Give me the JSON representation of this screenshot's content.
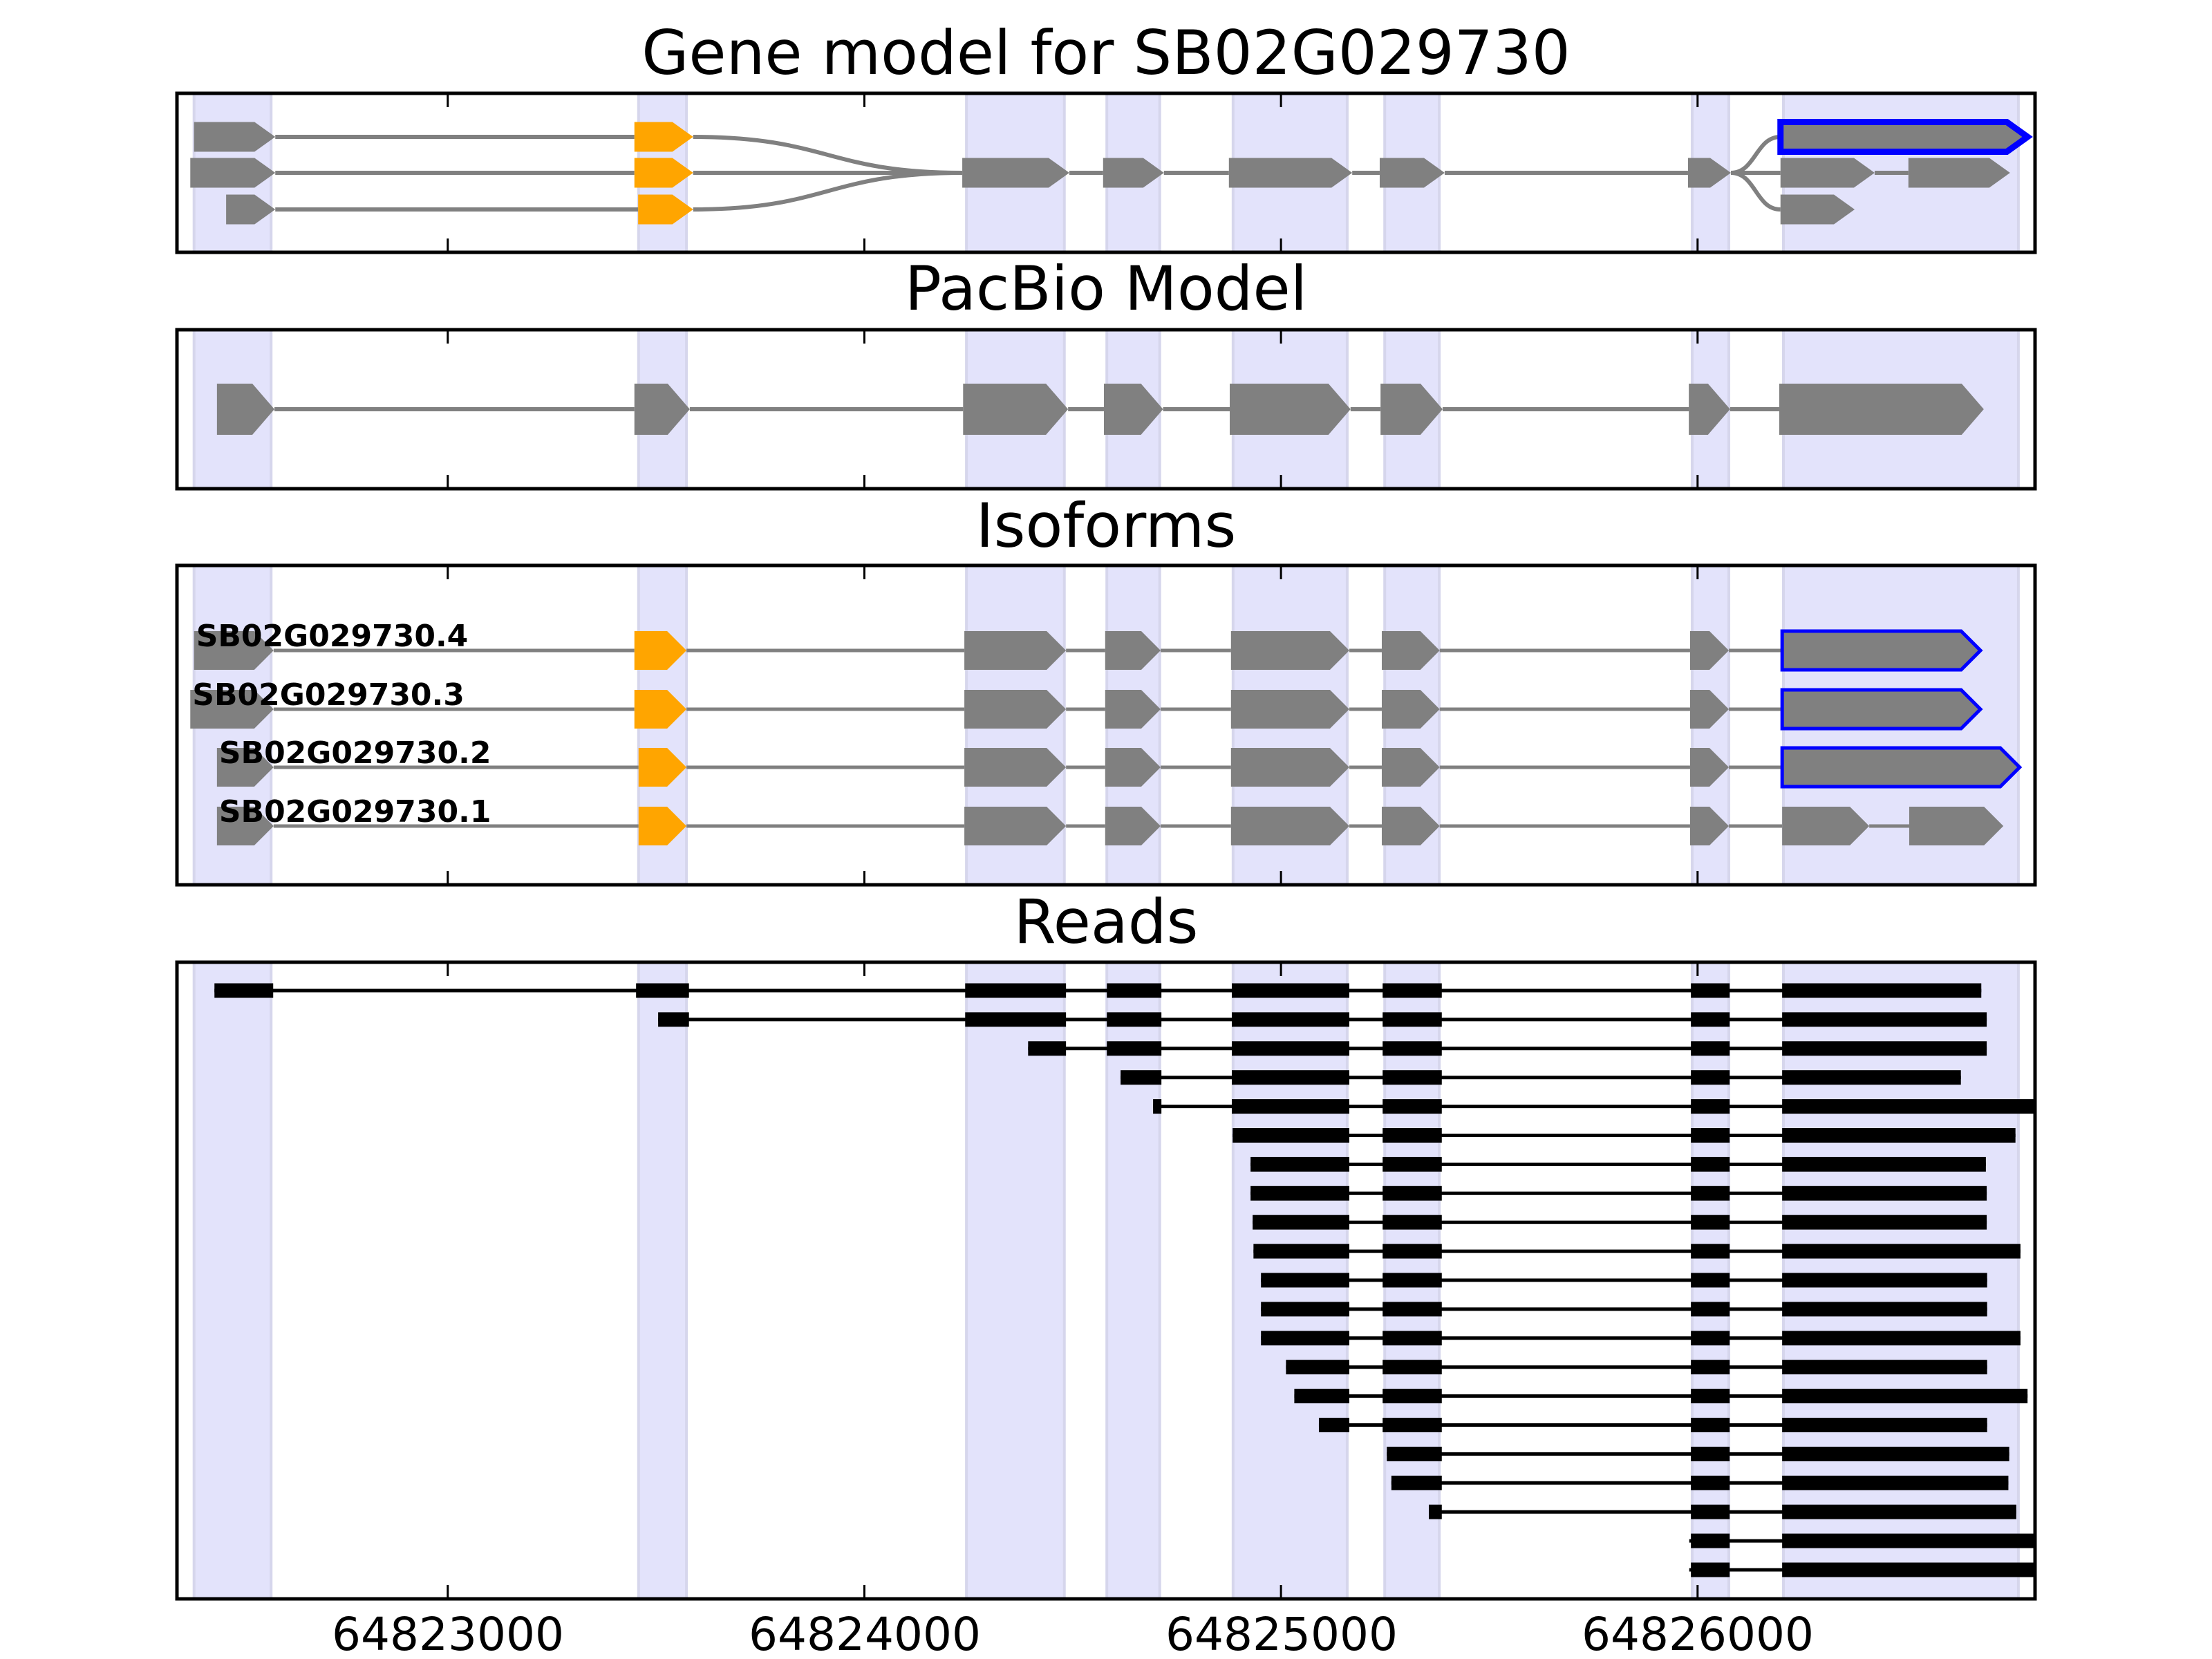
{
  "chart_data": {
    "type": "gene-structure",
    "xlim": [
      64822350,
      64826810
    ],
    "xticks": [
      64823000,
      64824000,
      64825000,
      64826000
    ],
    "xtick_labels": [
      "64823000",
      "64824000",
      "64825000",
      "64826000"
    ],
    "colors": {
      "exon": "#808080",
      "intron": "#808080",
      "utr_highlight": "#FFA500",
      "selected_outline": "#0000FF",
      "band": "#E3E3FB",
      "band_edge": "#D6D6EC",
      "read": "#000000",
      "frame": "#000000"
    },
    "exon_bands": [
      [
        64822391,
        64822576
      ],
      [
        64823458,
        64823573
      ],
      [
        64824245,
        64824480
      ],
      [
        64824582,
        64824709
      ],
      [
        64824885,
        64825159
      ],
      [
        64825249,
        64825380
      ],
      [
        64825987,
        64826075
      ],
      [
        64826206,
        64826770
      ]
    ],
    "panels": {
      "gene_model": {
        "title": "Gene model for SB02G029730",
        "transcripts": [
          {
            "exons": [
              [
                64822391,
                64822586,
                "gray"
              ],
              [
                64823448,
                64823589,
                "orange"
              ],
              [
                64824235,
                64824492,
                "gray"
              ],
              [
                64824573,
                64824719,
                "gray"
              ],
              [
                64824875,
                64825171,
                "gray"
              ],
              [
                64825237,
                64825393,
                "gray"
              ],
              [
                64825977,
                64826080,
                "gray"
              ],
              [
                64826199,
                64826792,
                "blue"
              ]
            ]
          },
          {
            "exons": [
              [
                64822382,
                64822586,
                "gray"
              ],
              [
                64823448,
                64823589,
                "orange"
              ],
              [
                64824235,
                64824492,
                "gray"
              ],
              [
                64824573,
                64824719,
                "gray"
              ],
              [
                64824875,
                64825171,
                "gray"
              ],
              [
                64825237,
                64825393,
                "gray"
              ],
              [
                64825977,
                64826080,
                "gray"
              ],
              [
                64826199,
                64826425,
                "gray"
              ],
              [
                64826506,
                64826750,
                "gray"
              ]
            ]
          },
          {
            "exons": [
              [
                64822468,
                64822586,
                "gray"
              ],
              [
                64823457,
                64823589,
                "orange"
              ],
              [
                64824235,
                64824492,
                "gray"
              ],
              [
                64824573,
                64824719,
                "gray"
              ],
              [
                64824875,
                64825171,
                "gray"
              ],
              [
                64825237,
                64825393,
                "gray"
              ],
              [
                64825977,
                64826080,
                "gray"
              ],
              [
                64826199,
                64826377,
                "gray"
              ]
            ]
          }
        ]
      },
      "pacbio": {
        "title": "PacBio Model",
        "exons": [
          [
            64822446,
            64822584
          ],
          [
            64823448,
            64823581
          ],
          [
            64824237,
            64824489
          ],
          [
            64824575,
            64824717
          ],
          [
            64824877,
            64825167
          ],
          [
            64825239,
            64825388
          ],
          [
            64825979,
            64826078
          ],
          [
            64826196,
            64826687
          ]
        ]
      },
      "isoforms": {
        "title": "Isoforms",
        "items": [
          {
            "label": "SB02G029730.4",
            "exons": [
              [
                64822391,
                64822582,
                "gray"
              ],
              [
                64823448,
                64823573,
                "orange"
              ],
              [
                64824240,
                64824484,
                "gray"
              ],
              [
                64824578,
                64824711,
                "gray"
              ],
              [
                64824880,
                64825164,
                "gray"
              ],
              [
                64825242,
                64825381,
                "gray"
              ],
              [
                64825982,
                64826075,
                "gray"
              ],
              [
                64826203,
                64826679,
                "blue"
              ]
            ]
          },
          {
            "label": "SB02G029730.3",
            "exons": [
              [
                64822382,
                64822582,
                "gray"
              ],
              [
                64823448,
                64823573,
                "orange"
              ],
              [
                64824240,
                64824484,
                "gray"
              ],
              [
                64824578,
                64824711,
                "gray"
              ],
              [
                64824880,
                64825164,
                "gray"
              ],
              [
                64825242,
                64825381,
                "gray"
              ],
              [
                64825982,
                64826075,
                "gray"
              ],
              [
                64826203,
                64826679,
                "blue"
              ]
            ]
          },
          {
            "label": "SB02G029730.2",
            "exons": [
              [
                64822446,
                64822582,
                "gray"
              ],
              [
                64823458,
                64823573,
                "orange"
              ],
              [
                64824240,
                64824484,
                "gray"
              ],
              [
                64824578,
                64824711,
                "gray"
              ],
              [
                64824880,
                64825164,
                "gray"
              ],
              [
                64825242,
                64825381,
                "gray"
              ],
              [
                64825982,
                64826075,
                "gray"
              ],
              [
                64826203,
                64826773,
                "blue"
              ]
            ]
          },
          {
            "label": "SB02G029730.1",
            "exons": [
              [
                64822446,
                64822582,
                "gray"
              ],
              [
                64823458,
                64823573,
                "orange"
              ],
              [
                64824240,
                64824484,
                "gray"
              ],
              [
                64824578,
                64824711,
                "gray"
              ],
              [
                64824880,
                64825164,
                "gray"
              ],
              [
                64825242,
                64825381,
                "gray"
              ],
              [
                64825982,
                64826075,
                "gray"
              ],
              [
                64826203,
                64826412,
                "gray"
              ],
              [
                64826508,
                64826734,
                "gray"
              ]
            ]
          }
        ]
      },
      "reads": {
        "title": "Reads",
        "exon_blocks": [
          [
            64822440,
            64822581
          ],
          [
            64823452,
            64823579
          ],
          [
            64824242,
            64824484
          ],
          [
            64824582,
            64824713
          ],
          [
            64824882,
            64825164
          ],
          [
            64825244,
            64825386
          ],
          [
            64825984,
            64826077
          ],
          [
            64826203,
            64826810
          ]
        ],
        "items": [
          {
            "start": 64822440,
            "end": 64826681
          },
          {
            "start": 64823505,
            "end": 64826694
          },
          {
            "start": 64824393,
            "end": 64826694
          },
          {
            "start": 64824615,
            "end": 64826632
          },
          {
            "start": 64824693,
            "end": 64826810
          },
          {
            "start": 64824884,
            "end": 64826763
          },
          {
            "start": 64824927,
            "end": 64826692
          },
          {
            "start": 64824927,
            "end": 64826694
          },
          {
            "start": 64824932,
            "end": 64826694
          },
          {
            "start": 64824934,
            "end": 64826775
          },
          {
            "start": 64824952,
            "end": 64826695
          },
          {
            "start": 64824952,
            "end": 64826695
          },
          {
            "start": 64824952,
            "end": 64826775
          },
          {
            "start": 64825012,
            "end": 64826695
          },
          {
            "start": 64825032,
            "end": 64826792
          },
          {
            "start": 64825091,
            "end": 64826695
          },
          {
            "start": 64825254,
            "end": 64826748
          },
          {
            "start": 64825265,
            "end": 64826746
          },
          {
            "start": 64825355,
            "end": 64826765
          },
          {
            "start": 64825980,
            "end": 64826810
          },
          {
            "start": 64825980,
            "end": 64826810
          }
        ]
      }
    }
  }
}
